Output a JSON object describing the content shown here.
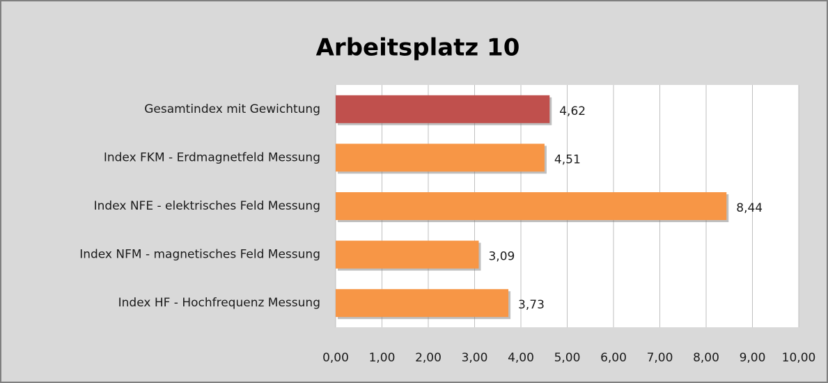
{
  "chart_data": {
    "type": "barh",
    "title": "Arbeitsplatz  10",
    "categories": [
      "Gesamtindex mit Gewichtung",
      "Index FKM - Erdmagnetfeld Messung",
      "Index NFE - elektrisches Feld Messung",
      "Index NFM - magnetisches Feld Messung",
      "Index HF - Hochfrequenz Messung"
    ],
    "values": [
      4.62,
      4.51,
      8.44,
      3.09,
      3.73
    ],
    "value_labels": [
      "4,62",
      "4,51",
      "8,44",
      "3,09",
      "3,73"
    ],
    "colors": [
      "#c0504d",
      "#f79646",
      "#f79646",
      "#f79646",
      "#f79646"
    ],
    "xlim": [
      0,
      10
    ],
    "xticks": [
      {
        "value": 0,
        "label": "0,00"
      },
      {
        "value": 1,
        "label": "1,00"
      },
      {
        "value": 2,
        "label": "2,00"
      },
      {
        "value": 3,
        "label": "3,00"
      },
      {
        "value": 4,
        "label": "4,00"
      },
      {
        "value": 5,
        "label": "5,00"
      },
      {
        "value": 6,
        "label": "6,00"
      },
      {
        "value": 7,
        "label": "7,00"
      },
      {
        "value": 8,
        "label": "8,00"
      },
      {
        "value": 9,
        "label": "9,00"
      },
      {
        "value": 10,
        "label": "10,00"
      }
    ],
    "grid": true
  }
}
